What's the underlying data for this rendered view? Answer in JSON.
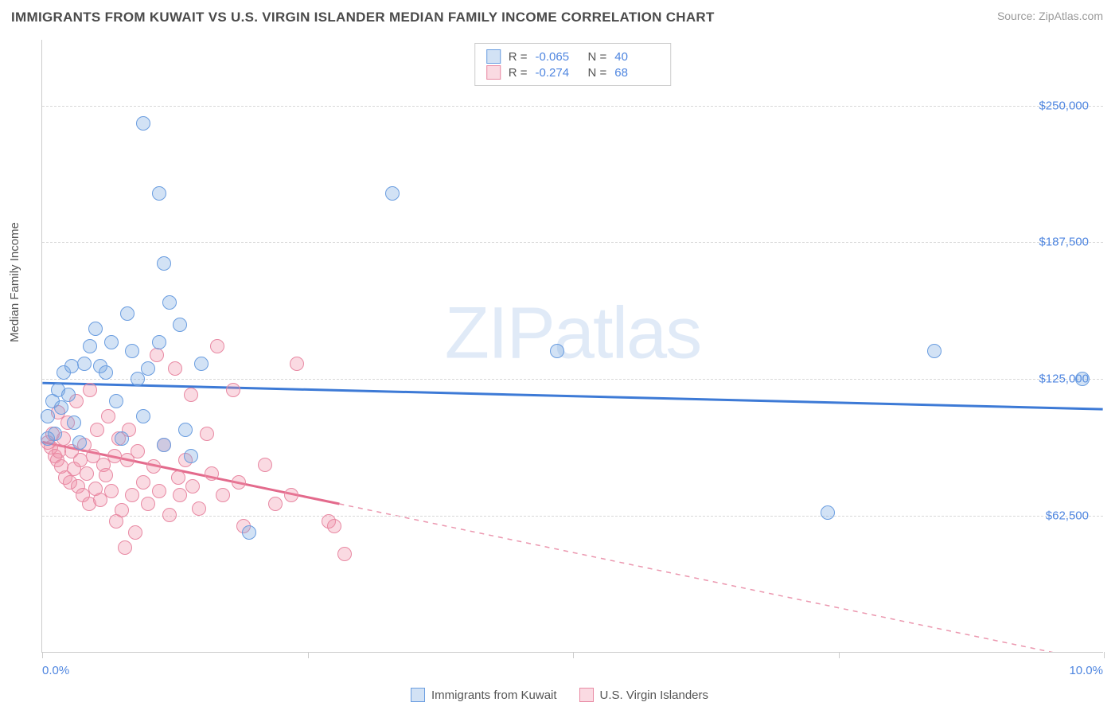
{
  "header": {
    "title": "IMMIGRANTS FROM KUWAIT VS U.S. VIRGIN ISLANDER MEDIAN FAMILY INCOME CORRELATION CHART",
    "source": "Source: ZipAtlas.com"
  },
  "chart": {
    "type": "scatter",
    "ylabel": "Median Family Income",
    "xlim": [
      0,
      10
    ],
    "ylim": [
      0,
      280000
    ],
    "ytick_values": [
      62500,
      125000,
      187500,
      250000
    ],
    "ytick_labels": [
      "$62,500",
      "$125,000",
      "$187,500",
      "$250,000"
    ],
    "xtick_values": [
      0,
      2.5,
      5.0,
      7.5,
      10
    ],
    "xtick_label_left": "0.0%",
    "xtick_label_right": "10.0%",
    "grid_color": "#d8d8d8",
    "axis_color": "#cccccc",
    "marker_radius": 9,
    "watermark": "ZIPatlas",
    "series": [
      {
        "key": "kuwait",
        "label": "Immigrants from Kuwait",
        "fill": "rgba(115,165,225,0.32)",
        "stroke": "#6a9de0",
        "line_color": "#3d7ad6",
        "line_width": 3,
        "r_label": "R =",
        "r_value": "-0.065",
        "n_label": "N =",
        "n_value": "40",
        "regression": {
          "x1": 0,
          "y1": 123000,
          "x2": 10,
          "y2": 111000,
          "solid_until_x": 10
        },
        "points": [
          [
            0.05,
            108000
          ],
          [
            0.1,
            115000
          ],
          [
            0.12,
            100000
          ],
          [
            0.15,
            120000
          ],
          [
            0.18,
            112000
          ],
          [
            0.2,
            128000
          ],
          [
            0.25,
            118000
          ],
          [
            0.28,
            131000
          ],
          [
            0.3,
            105000
          ],
          [
            0.35,
            96000
          ],
          [
            0.4,
            132000
          ],
          [
            0.45,
            140000
          ],
          [
            0.5,
            148000
          ],
          [
            0.55,
            131000
          ],
          [
            0.6,
            128000
          ],
          [
            0.65,
            142000
          ],
          [
            0.7,
            115000
          ],
          [
            0.75,
            98000
          ],
          [
            0.8,
            155000
          ],
          [
            0.85,
            138000
          ],
          [
            0.9,
            125000
          ],
          [
            0.95,
            108000
          ],
          [
            1.0,
            130000
          ],
          [
            1.1,
            142000
          ],
          [
            1.15,
            95000
          ],
          [
            1.2,
            160000
          ],
          [
            1.3,
            150000
          ],
          [
            1.35,
            102000
          ],
          [
            1.4,
            90000
          ],
          [
            1.5,
            132000
          ],
          [
            0.95,
            242000
          ],
          [
            1.1,
            210000
          ],
          [
            1.15,
            178000
          ],
          [
            3.3,
            210000
          ],
          [
            4.85,
            138000
          ],
          [
            1.95,
            55000
          ],
          [
            7.4,
            64000
          ],
          [
            8.4,
            138000
          ],
          [
            9.8,
            125000
          ],
          [
            0.05,
            98000
          ]
        ]
      },
      {
        "key": "usvi",
        "label": "U.S. Virgin Islanders",
        "fill": "rgba(240,140,165,0.32)",
        "stroke": "#e889a3",
        "line_color": "#e36a8c",
        "line_width": 3,
        "r_label": "R =",
        "r_value": "-0.274",
        "n_label": "N =",
        "n_value": "68",
        "regression": {
          "x1": 0,
          "y1": 96000,
          "x2": 10,
          "y2": -5000,
          "solid_until_x": 2.8
        },
        "points": [
          [
            0.05,
            96000
          ],
          [
            0.08,
            94000
          ],
          [
            0.1,
            100000
          ],
          [
            0.12,
            90000
          ],
          [
            0.14,
            88000
          ],
          [
            0.15,
            110000
          ],
          [
            0.16,
            92000
          ],
          [
            0.18,
            85000
          ],
          [
            0.2,
            98000
          ],
          [
            0.22,
            80000
          ],
          [
            0.24,
            105000
          ],
          [
            0.26,
            78000
          ],
          [
            0.28,
            92000
          ],
          [
            0.3,
            84000
          ],
          [
            0.32,
            115000
          ],
          [
            0.34,
            76000
          ],
          [
            0.36,
            88000
          ],
          [
            0.38,
            72000
          ],
          [
            0.4,
            95000
          ],
          [
            0.42,
            82000
          ],
          [
            0.44,
            68000
          ],
          [
            0.45,
            120000
          ],
          [
            0.48,
            90000
          ],
          [
            0.5,
            75000
          ],
          [
            0.52,
            102000
          ],
          [
            0.55,
            70000
          ],
          [
            0.58,
            86000
          ],
          [
            0.6,
            81000
          ],
          [
            0.62,
            108000
          ],
          [
            0.65,
            74000
          ],
          [
            0.68,
            90000
          ],
          [
            0.7,
            60000
          ],
          [
            0.72,
            98000
          ],
          [
            0.75,
            65000
          ],
          [
            0.78,
            48000
          ],
          [
            0.8,
            88000
          ],
          [
            0.82,
            102000
          ],
          [
            0.85,
            72000
          ],
          [
            0.88,
            55000
          ],
          [
            0.9,
            92000
          ],
          [
            0.95,
            78000
          ],
          [
            1.0,
            68000
          ],
          [
            1.05,
            85000
          ],
          [
            1.08,
            136000
          ],
          [
            1.1,
            74000
          ],
          [
            1.15,
            95000
          ],
          [
            1.2,
            63000
          ],
          [
            1.25,
            130000
          ],
          [
            1.28,
            80000
          ],
          [
            1.3,
            72000
          ],
          [
            1.35,
            88000
          ],
          [
            1.4,
            118000
          ],
          [
            1.42,
            76000
          ],
          [
            1.48,
            66000
          ],
          [
            1.55,
            100000
          ],
          [
            1.6,
            82000
          ],
          [
            1.65,
            140000
          ],
          [
            1.7,
            72000
          ],
          [
            1.8,
            120000
          ],
          [
            1.85,
            78000
          ],
          [
            1.9,
            58000
          ],
          [
            2.1,
            86000
          ],
          [
            2.2,
            68000
          ],
          [
            2.35,
            72000
          ],
          [
            2.4,
            132000
          ],
          [
            2.7,
            60000
          ],
          [
            2.75,
            58000
          ],
          [
            2.85,
            45000
          ]
        ]
      }
    ]
  }
}
